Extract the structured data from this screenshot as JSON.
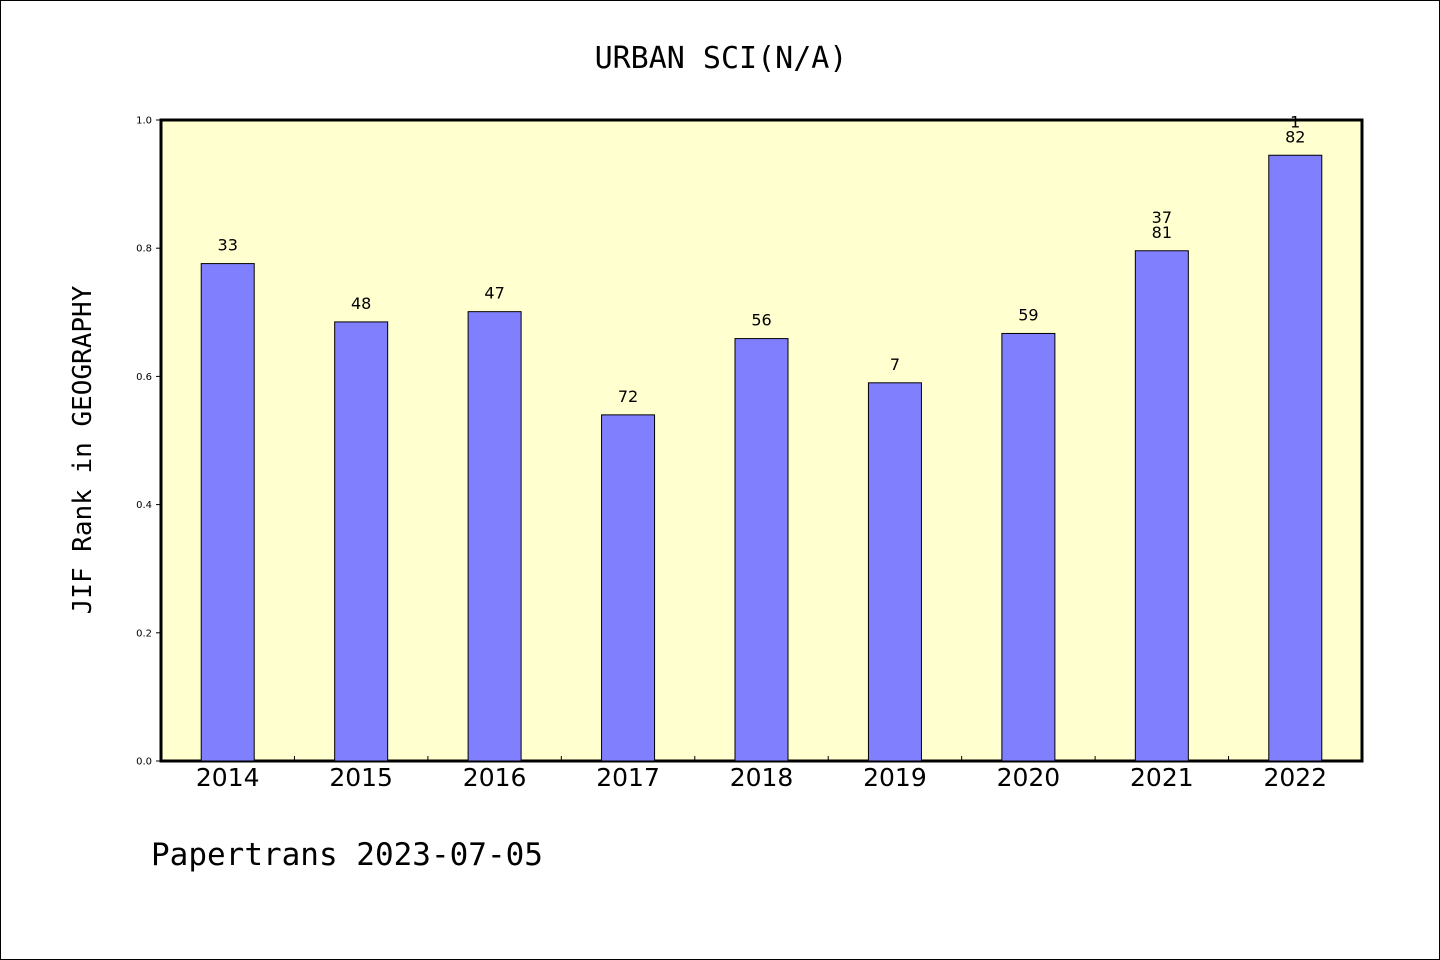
{
  "footer": {
    "text": "Papertrans 2023-07-05"
  },
  "colors": {
    "plot_background": "#FFFFD0",
    "bar_fill": "#8080FF",
    "bar_stroke": "#000000",
    "axis": "#000000",
    "text": "#000000"
  },
  "chart_data": {
    "type": "bar",
    "title": "URBAN SCI(N/A)",
    "xlabel": "",
    "ylabel": "JIF Rank in GEOGRAPHY",
    "ylim": [
      0,
      1.0
    ],
    "yticks": [
      "0.0",
      "0.2",
      "0.4",
      "0.6",
      "0.8",
      "1.0"
    ],
    "grid": false,
    "categories": [
      "2014",
      "2015",
      "2016",
      "2017",
      "2018",
      "2019",
      "2020",
      "2021",
      "2022"
    ],
    "values": [
      0.776,
      0.685,
      0.701,
      0.54,
      0.659,
      0.59,
      0.667,
      0.796,
      0.945
    ],
    "bar_labels": [
      [
        "33"
      ],
      [
        "48"
      ],
      [
        "47"
      ],
      [
        "72"
      ],
      [
        "56"
      ],
      [
        "7"
      ],
      [
        "59"
      ],
      [
        "37",
        "81"
      ],
      [
        "1",
        "82"
      ]
    ]
  }
}
